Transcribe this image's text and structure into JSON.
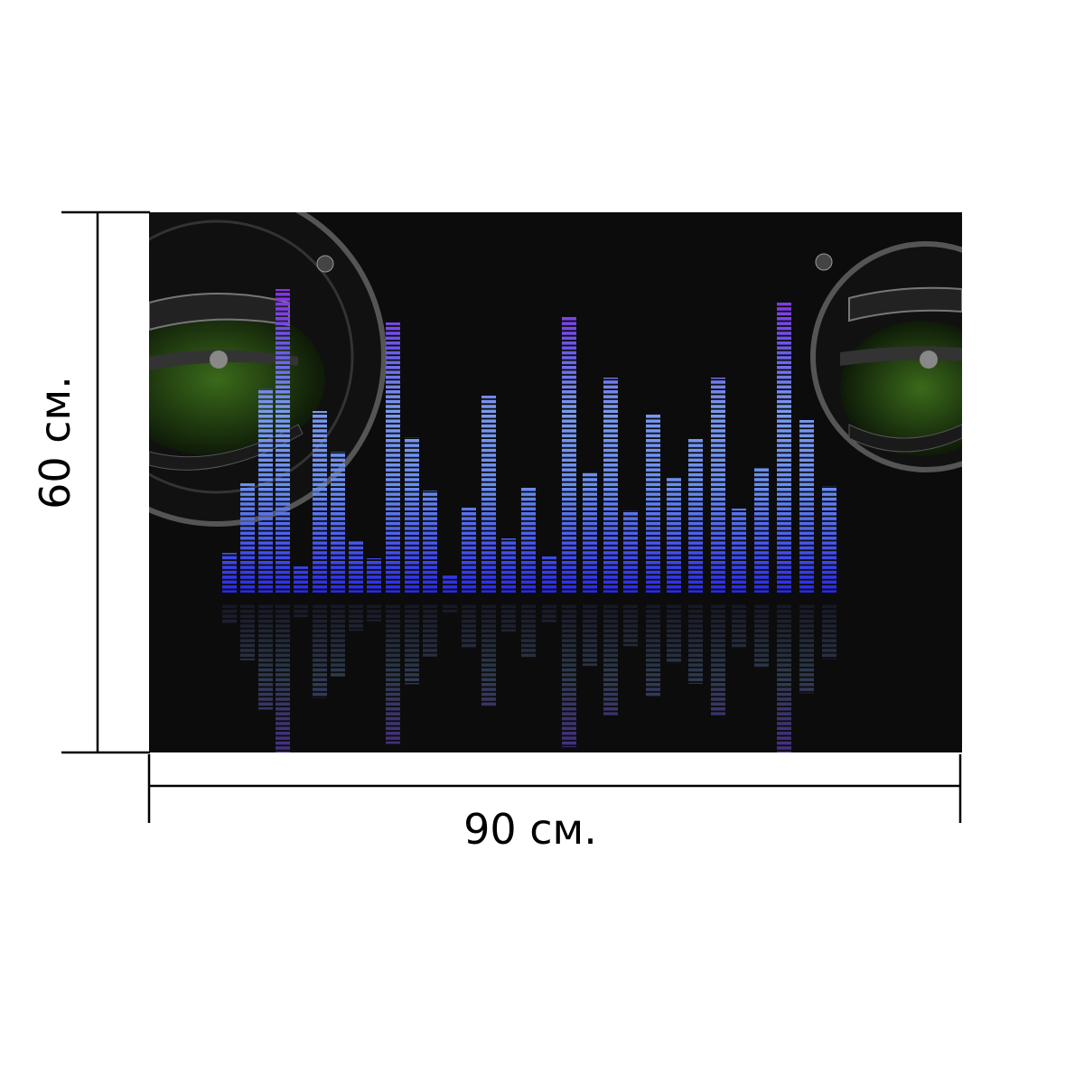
{
  "image": {
    "height_label": "60 см.",
    "width_label": "90 см."
  }
}
